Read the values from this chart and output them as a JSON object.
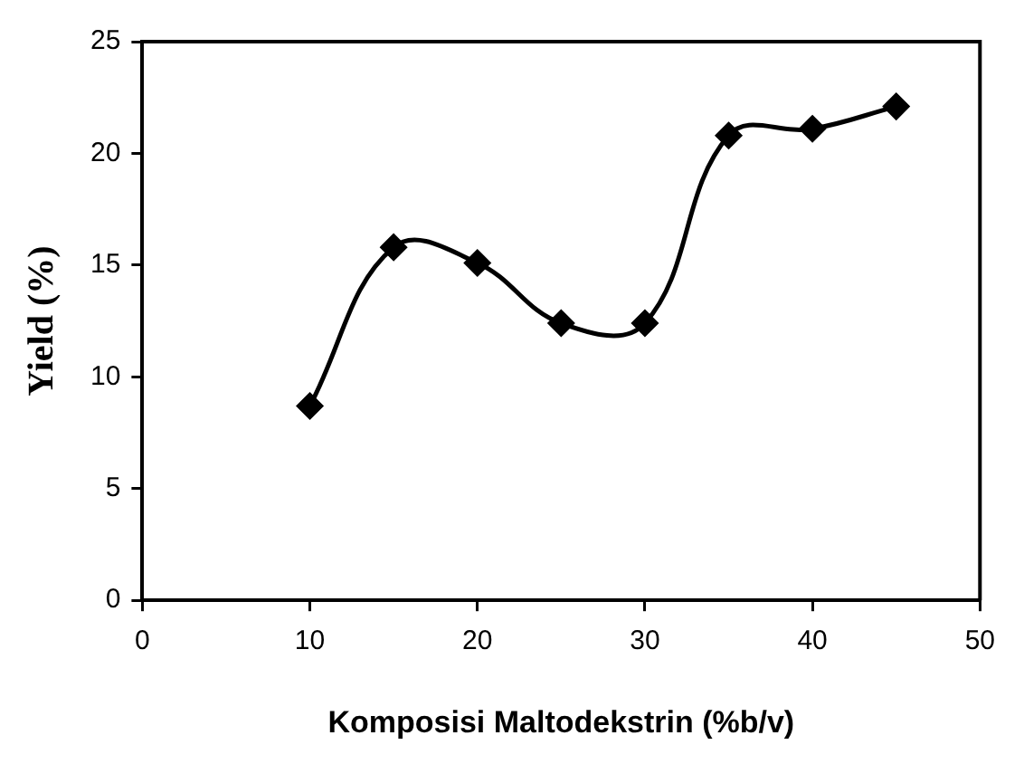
{
  "chart_data": {
    "type": "line",
    "xlabel": "Komposisi Maltodekstrin (%b/v)",
    "ylabel": "Yield (%)",
    "x": [
      10,
      15,
      20,
      25,
      30,
      35,
      40,
      45
    ],
    "series": [
      {
        "color": "#000000",
        "values": [
          8.7,
          15.8,
          15.1,
          12.4,
          12.4,
          20.8,
          21.1,
          22.1
        ]
      }
    ],
    "xlim": [
      0,
      50
    ],
    "xticks": [
      0,
      10,
      20,
      30,
      40,
      50
    ],
    "ylim": [
      0,
      25
    ],
    "yticks": [
      0,
      5,
      10,
      15,
      20,
      25
    ],
    "grid": false,
    "legend": false,
    "marker": "diamond",
    "line_style": "solid"
  }
}
